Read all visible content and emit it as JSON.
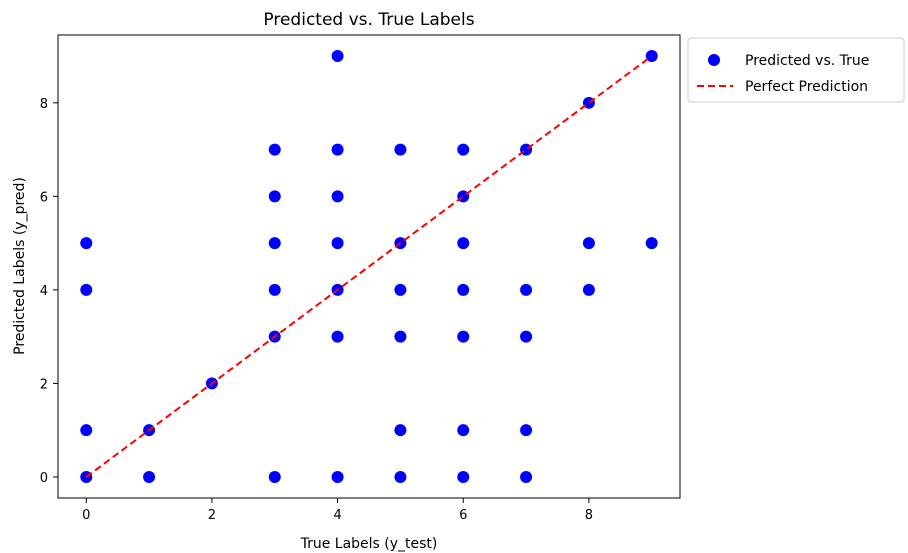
{
  "chart_data": {
    "type": "scatter",
    "title": "Predicted vs. True Labels",
    "xlabel": "True Labels (y_test)",
    "ylabel": "Predicted Labels (y_pred)",
    "xlim": [
      -0.45,
      9.45
    ],
    "ylim": [
      -0.45,
      9.45
    ],
    "xticks": [
      0,
      2,
      4,
      6,
      8
    ],
    "yticks": [
      0,
      2,
      4,
      6,
      8
    ],
    "grid": false,
    "legend_position": "outside-top-right",
    "series": [
      {
        "name": "Predicted vs. True",
        "kind": "scatter",
        "color": "#0000ff",
        "points": [
          [
            0,
            0
          ],
          [
            0,
            1
          ],
          [
            0,
            4
          ],
          [
            0,
            5
          ],
          [
            1,
            0
          ],
          [
            1,
            1
          ],
          [
            2,
            2
          ],
          [
            3,
            0
          ],
          [
            3,
            3
          ],
          [
            3,
            4
          ],
          [
            3,
            5
          ],
          [
            3,
            6
          ],
          [
            3,
            7
          ],
          [
            4,
            0
          ],
          [
            4,
            3
          ],
          [
            4,
            4
          ],
          [
            4,
            5
          ],
          [
            4,
            6
          ],
          [
            4,
            7
          ],
          [
            4,
            9
          ],
          [
            5,
            0
          ],
          [
            5,
            1
          ],
          [
            5,
            3
          ],
          [
            5,
            4
          ],
          [
            5,
            5
          ],
          [
            5,
            7
          ],
          [
            6,
            0
          ],
          [
            6,
            1
          ],
          [
            6,
            3
          ],
          [
            6,
            4
          ],
          [
            6,
            5
          ],
          [
            6,
            6
          ],
          [
            6,
            7
          ],
          [
            7,
            0
          ],
          [
            7,
            1
          ],
          [
            7,
            3
          ],
          [
            7,
            4
          ],
          [
            7,
            7
          ],
          [
            8,
            4
          ],
          [
            8,
            5
          ],
          [
            8,
            8
          ],
          [
            9,
            5
          ],
          [
            9,
            9
          ]
        ]
      },
      {
        "name": "Perfect Prediction",
        "kind": "line",
        "style": "dashed",
        "color": "#ff0000",
        "points": [
          [
            0,
            0
          ],
          [
            9,
            9
          ]
        ]
      }
    ]
  }
}
